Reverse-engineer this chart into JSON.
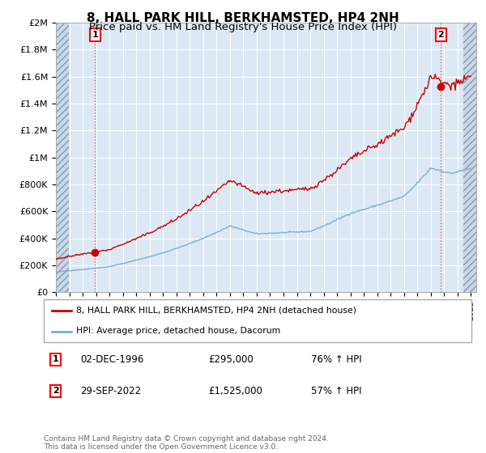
{
  "title": "8, HALL PARK HILL, BERKHAMSTED, HP4 2NH",
  "subtitle": "Price paid vs. HM Land Registry's House Price Index (HPI)",
  "ylim": [
    0,
    2000000
  ],
  "ytick_labels": [
    "£0",
    "£200K",
    "£400K",
    "£600K",
    "£800K",
    "£1M",
    "£1.2M",
    "£1.4M",
    "£1.6M",
    "£1.8M",
    "£2M"
  ],
  "sale1_x": 1996.917,
  "sale1_price": 295000,
  "sale2_x": 2022.75,
  "sale2_price": 1525000,
  "line_red_color": "#cc0000",
  "line_blue_color": "#7aafdb",
  "chart_bg_color": "#dce9f5",
  "fig_bg_color": "#ffffff",
  "grid_color": "#ffffff",
  "hatch_color": "#c8d8e8",
  "vline_color": "#e86060",
  "legend_line1": "8, HALL PARK HILL, BERKHAMSTED, HP4 2NH (detached house)",
  "legend_line2": "HPI: Average price, detached house, Dacorum",
  "footer": "Contains HM Land Registry data © Crown copyright and database right 2024.\nThis data is licensed under the Open Government Licence v3.0.",
  "title_fontsize": 11,
  "subtitle_fontsize": 9.5
}
